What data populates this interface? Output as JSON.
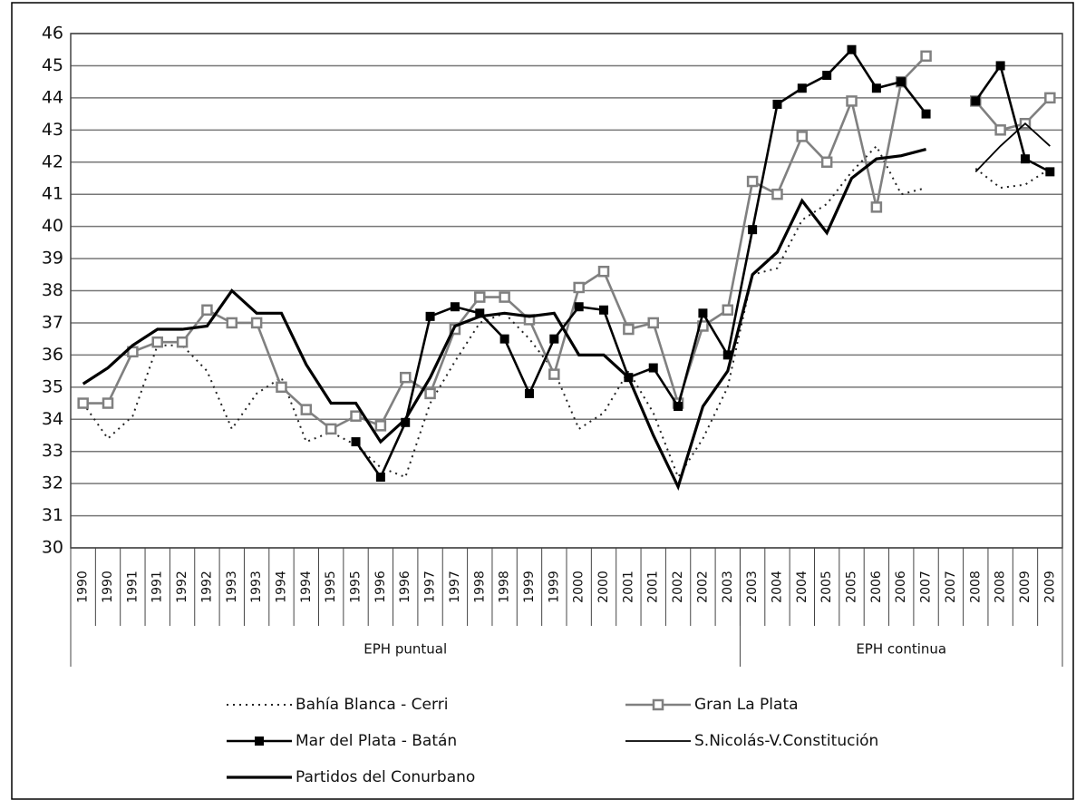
{
  "chart_data": {
    "type": "line",
    "categories": [
      "1990",
      "1990",
      "1991",
      "1991",
      "1992",
      "1992",
      "1993",
      "1993",
      "1994",
      "1994",
      "1995",
      "1995",
      "1996",
      "1996",
      "1997",
      "1997",
      "1998",
      "1998",
      "1999",
      "1999",
      "2000",
      "2000",
      "2001",
      "2001",
      "2002",
      "2002",
      "2003",
      "2003",
      "2004",
      "2004",
      "2005",
      "2005",
      "2006",
      "2006",
      "2007",
      "2007",
      "2008",
      "2008",
      "2009",
      "2009"
    ],
    "groups": [
      {
        "label": "EPH puntual",
        "categories_count": 27
      },
      {
        "label": "EPH continua",
        "categories_count": 13
      }
    ],
    "ylim": [
      30,
      46
    ],
    "yticks": [
      30,
      31,
      32,
      33,
      34,
      35,
      36,
      37,
      38,
      39,
      40,
      41,
      42,
      43,
      44,
      45,
      46
    ],
    "grid": true,
    "series": [
      {
        "name": "Bahía Blanca - Cerri",
        "color": "#222222",
        "line_style": "dotted",
        "marker": "none",
        "values": [
          34.5,
          33.4,
          34.1,
          36.3,
          36.3,
          35.5,
          33.7,
          34.8,
          35.3,
          33.3,
          33.6,
          33.2,
          32.5,
          32.2,
          34.5,
          35.8,
          37.0,
          37.3,
          36.5,
          35.5,
          33.7,
          34.2,
          35.5,
          34.2,
          32.2,
          33.4,
          35.0,
          38.5,
          38.7,
          40.2,
          40.7,
          41.7,
          42.5,
          41.0,
          41.2,
          null,
          41.8,
          41.2,
          41.3,
          41.8
        ]
      },
      {
        "name": "Gran La Plata",
        "color": "#808080",
        "line_style": "solid",
        "marker": "square-open",
        "values": [
          34.5,
          34.5,
          36.1,
          36.4,
          36.4,
          37.4,
          37.0,
          37.0,
          35.0,
          34.3,
          33.7,
          34.1,
          33.8,
          35.3,
          34.8,
          36.8,
          37.8,
          37.8,
          37.1,
          35.4,
          38.1,
          38.6,
          36.8,
          37.0,
          34.5,
          36.9,
          37.4,
          41.4,
          41.0,
          42.8,
          42.0,
          43.9,
          40.6,
          44.5,
          45.3,
          null,
          43.9,
          43.0,
          43.2,
          44.0
        ]
      },
      {
        "name": "Mar del Plata - Batán",
        "color": "#000000",
        "line_style": "solid",
        "marker": "square",
        "values": [
          null,
          null,
          null,
          null,
          null,
          null,
          null,
          null,
          null,
          null,
          null,
          33.3,
          32.2,
          33.9,
          37.2,
          37.5,
          37.3,
          36.5,
          34.8,
          36.5,
          37.5,
          37.4,
          35.3,
          35.6,
          34.4,
          37.3,
          36.0,
          39.9,
          43.8,
          44.3,
          44.7,
          45.5,
          44.3,
          44.5,
          43.5,
          null,
          43.9,
          45.0,
          42.1,
          41.7
        ]
      },
      {
        "name": "S.Nicolás-V.Constitución",
        "color": "#000000",
        "line_style": "solid",
        "marker": "none",
        "values": [
          null,
          null,
          null,
          null,
          null,
          null,
          null,
          null,
          null,
          null,
          null,
          null,
          null,
          null,
          null,
          null,
          null,
          null,
          null,
          null,
          null,
          null,
          null,
          null,
          null,
          null,
          null,
          null,
          null,
          null,
          null,
          null,
          null,
          null,
          null,
          null,
          41.7,
          42.5,
          43.2,
          42.5
        ]
      },
      {
        "name": "Partidos del Conurbano",
        "color": "#000000",
        "line_style": "thick",
        "marker": "none",
        "values": [
          35.1,
          35.6,
          36.3,
          36.8,
          36.8,
          36.9,
          38.0,
          37.3,
          37.3,
          35.7,
          34.5,
          34.5,
          33.3,
          34.0,
          35.3,
          36.9,
          37.2,
          37.3,
          37.2,
          37.3,
          36.0,
          36.0,
          35.3,
          33.5,
          31.9,
          34.4,
          35.5,
          38.5,
          39.2,
          40.8,
          39.8,
          41.5,
          42.1,
          42.2,
          42.4,
          null,
          null,
          null,
          null,
          null
        ]
      }
    ]
  }
}
